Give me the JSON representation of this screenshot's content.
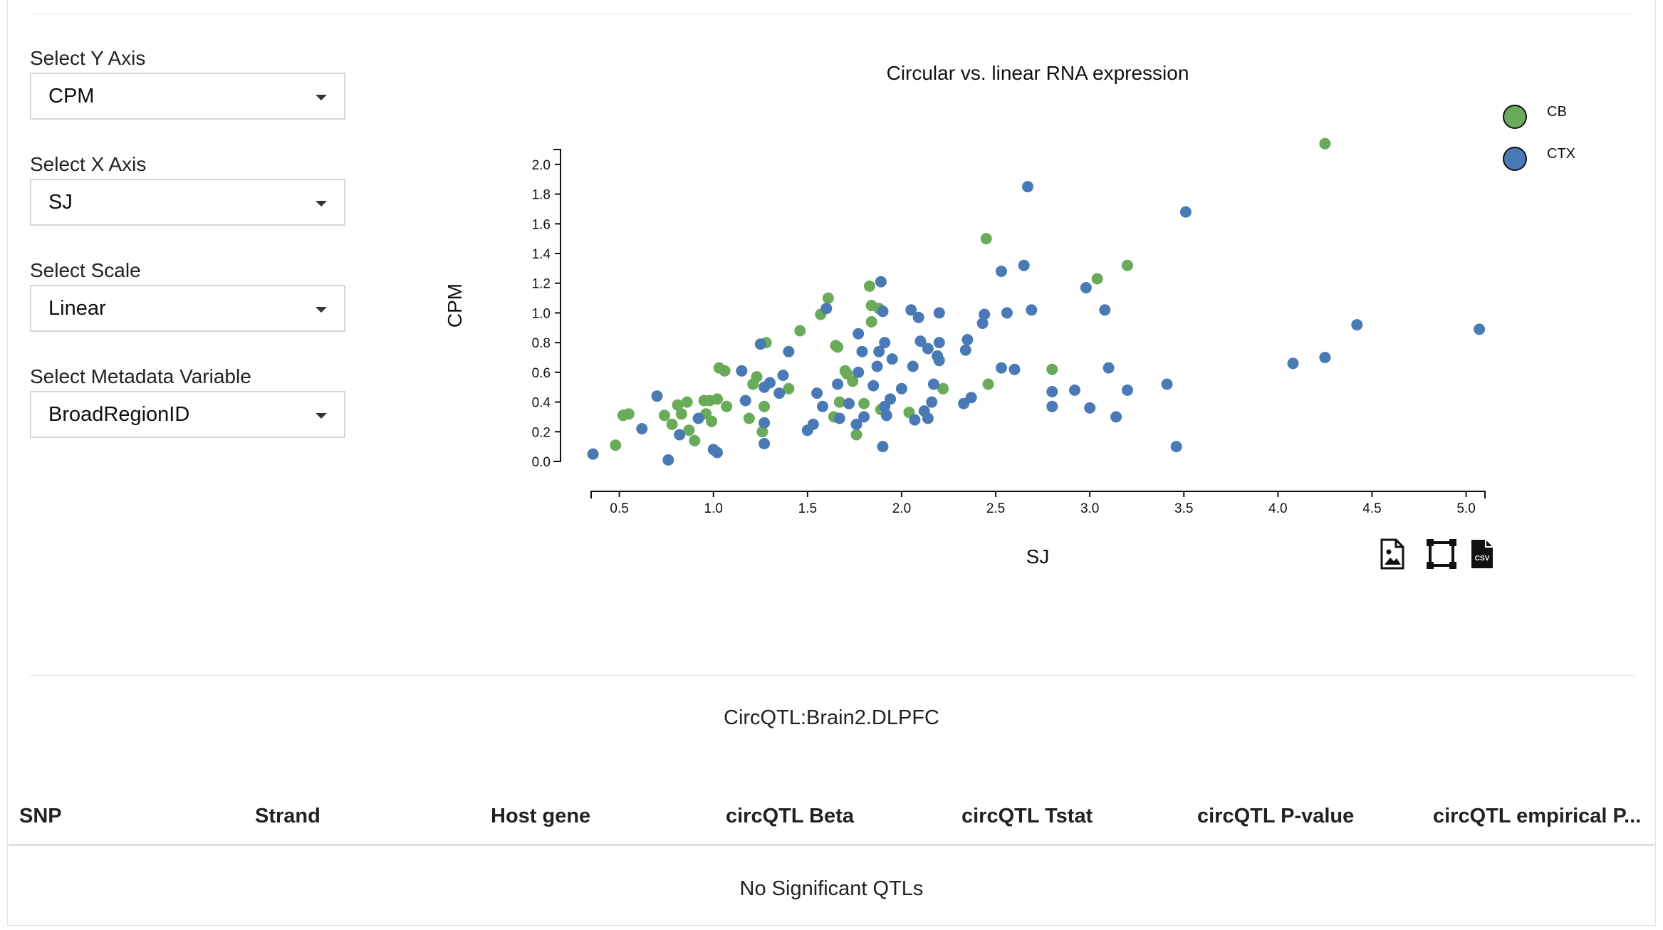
{
  "controls": {
    "y_axis": {
      "label": "Select Y Axis",
      "value": "CPM"
    },
    "x_axis": {
      "label": "Select X Axis",
      "value": "SJ"
    },
    "scale": {
      "label": "Select Scale",
      "value": "Linear"
    },
    "metadata": {
      "label": "Select Metadata Variable",
      "value": "BroadRegionID"
    }
  },
  "toolbar": {
    "icons": [
      "image-download-icon",
      "fullscreen-icon",
      "csv-download-icon"
    ]
  },
  "chart_data": {
    "type": "scatter",
    "title": "Circular vs. linear RNA expression",
    "xlabel": "SJ",
    "ylabel": "CPM",
    "xlim": [
      0.35,
      5.1
    ],
    "ylim": [
      0.0,
      2.1
    ],
    "xticks": [
      "0.5",
      "1.0",
      "1.5",
      "2.0",
      "2.5",
      "3.0",
      "3.5",
      "4.0",
      "4.5",
      "5.0"
    ],
    "yticks": [
      "0.0",
      "0.2",
      "0.4",
      "0.6",
      "0.8",
      "1.0",
      "1.2",
      "1.4",
      "1.6",
      "1.8",
      "2.0"
    ],
    "legend_position": "top-right",
    "series": [
      {
        "name": "CB",
        "color": "#6aab5a",
        "points": [
          [
            0.48,
            0.11
          ],
          [
            0.52,
            0.31
          ],
          [
            0.55,
            0.32
          ],
          [
            0.74,
            0.31
          ],
          [
            0.78,
            0.25
          ],
          [
            0.81,
            0.38
          ],
          [
            0.83,
            0.32
          ],
          [
            0.86,
            0.4
          ],
          [
            0.87,
            0.21
          ],
          [
            0.9,
            0.14
          ],
          [
            0.95,
            0.41
          ],
          [
            0.96,
            0.32
          ],
          [
            0.98,
            0.41
          ],
          [
            0.99,
            0.27
          ],
          [
            1.02,
            0.42
          ],
          [
            1.03,
            0.63
          ],
          [
            1.06,
            0.61
          ],
          [
            1.07,
            0.37
          ],
          [
            1.19,
            0.29
          ],
          [
            1.21,
            0.52
          ],
          [
            1.23,
            0.57
          ],
          [
            1.26,
            0.2
          ],
          [
            1.27,
            0.37
          ],
          [
            1.28,
            0.8
          ],
          [
            1.4,
            0.49
          ],
          [
            1.46,
            0.88
          ],
          [
            1.57,
            0.99
          ],
          [
            1.61,
            1.1
          ],
          [
            1.64,
            0.3
          ],
          [
            1.65,
            0.78
          ],
          [
            1.66,
            0.77
          ],
          [
            1.67,
            0.4
          ],
          [
            1.7,
            0.61
          ],
          [
            1.71,
            0.59
          ],
          [
            1.74,
            0.54
          ],
          [
            1.76,
            0.18
          ],
          [
            1.8,
            0.39
          ],
          [
            1.83,
            1.18
          ],
          [
            1.84,
            0.94
          ],
          [
            1.84,
            1.05
          ],
          [
            1.88,
            1.03
          ],
          [
            1.89,
            0.35
          ],
          [
            2.04,
            0.33
          ],
          [
            2.22,
            0.49
          ],
          [
            2.45,
            1.5
          ],
          [
            2.46,
            0.52
          ],
          [
            2.8,
            0.62
          ],
          [
            3.04,
            1.23
          ],
          [
            3.2,
            1.32
          ],
          [
            4.25,
            2.14
          ]
        ]
      },
      {
        "name": "CTX",
        "color": "#4a7ab5",
        "points": [
          [
            0.36,
            0.05
          ],
          [
            0.62,
            0.22
          ],
          [
            0.7,
            0.44
          ],
          [
            0.76,
            0.01
          ],
          [
            0.82,
            0.18
          ],
          [
            0.92,
            0.29
          ],
          [
            1.0,
            0.08
          ],
          [
            1.02,
            0.06
          ],
          [
            1.15,
            0.61
          ],
          [
            1.17,
            0.41
          ],
          [
            1.25,
            0.79
          ],
          [
            1.27,
            0.5
          ],
          [
            1.27,
            0.26
          ],
          [
            1.27,
            0.12
          ],
          [
            1.3,
            0.53
          ],
          [
            1.35,
            0.46
          ],
          [
            1.37,
            0.58
          ],
          [
            1.4,
            0.74
          ],
          [
            1.5,
            0.21
          ],
          [
            1.53,
            0.25
          ],
          [
            1.55,
            0.46
          ],
          [
            1.58,
            0.37
          ],
          [
            1.6,
            1.03
          ],
          [
            1.66,
            0.52
          ],
          [
            1.67,
            0.29
          ],
          [
            1.72,
            0.39
          ],
          [
            1.76,
            0.25
          ],
          [
            1.77,
            0.86
          ],
          [
            1.77,
            0.6
          ],
          [
            1.79,
            0.74
          ],
          [
            1.8,
            0.3
          ],
          [
            1.85,
            0.51
          ],
          [
            1.87,
            0.64
          ],
          [
            1.88,
            0.74
          ],
          [
            1.89,
            1.21
          ],
          [
            1.9,
            0.1
          ],
          [
            1.9,
            1.01
          ],
          [
            1.91,
            0.8
          ],
          [
            1.91,
            0.37
          ],
          [
            1.92,
            0.31
          ],
          [
            1.94,
            0.42
          ],
          [
            1.95,
            0.69
          ],
          [
            2.0,
            0.49
          ],
          [
            2.05,
            1.02
          ],
          [
            2.06,
            0.64
          ],
          [
            2.07,
            0.28
          ],
          [
            2.09,
            0.97
          ],
          [
            2.1,
            0.81
          ],
          [
            2.12,
            0.34
          ],
          [
            2.14,
            0.76
          ],
          [
            2.14,
            0.29
          ],
          [
            2.16,
            0.4
          ],
          [
            2.17,
            0.52
          ],
          [
            2.19,
            0.71
          ],
          [
            2.2,
            0.68
          ],
          [
            2.2,
            1.0
          ],
          [
            2.2,
            0.8
          ],
          [
            2.33,
            0.39
          ],
          [
            2.34,
            0.75
          ],
          [
            2.35,
            0.82
          ],
          [
            2.37,
            0.43
          ],
          [
            2.43,
            0.93
          ],
          [
            2.44,
            0.99
          ],
          [
            2.53,
            0.63
          ],
          [
            2.53,
            1.28
          ],
          [
            2.56,
            1.0
          ],
          [
            2.6,
            0.62
          ],
          [
            2.65,
            1.32
          ],
          [
            2.67,
            1.85
          ],
          [
            2.69,
            1.02
          ],
          [
            2.8,
            0.47
          ],
          [
            2.8,
            0.37
          ],
          [
            2.92,
            0.48
          ],
          [
            2.98,
            1.17
          ],
          [
            3.0,
            0.36
          ],
          [
            3.08,
            1.02
          ],
          [
            3.1,
            0.63
          ],
          [
            3.14,
            0.3
          ],
          [
            3.2,
            0.48
          ],
          [
            3.41,
            0.52
          ],
          [
            3.46,
            0.1
          ],
          [
            3.51,
            1.68
          ],
          [
            4.08,
            0.66
          ],
          [
            4.25,
            0.7
          ],
          [
            4.42,
            0.92
          ],
          [
            5.07,
            0.89
          ]
        ]
      }
    ]
  },
  "qtl_table": {
    "title": "CircQTL:Brain2.DLPFC",
    "columns": [
      "SNP",
      "Strand",
      "Host gene",
      "circQTL Beta",
      "circQTL Tstat",
      "circQTL P-value",
      "circQTL empirical P..."
    ],
    "empty_message": "No Significant QTLs"
  }
}
